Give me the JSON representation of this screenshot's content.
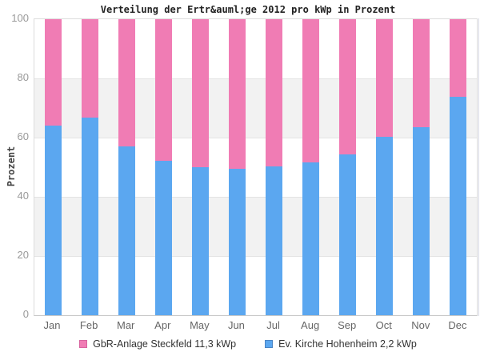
{
  "chart_data": {
    "type": "bar",
    "stacked": true,
    "title": "Verteilung der Ertr&auml;ge 2012 pro kWp in Prozent",
    "ylabel": "Prozent",
    "xlabel": "",
    "ylim": [
      0,
      100
    ],
    "yticks": [
      0,
      20,
      40,
      60,
      80,
      100
    ],
    "grid": "horizontal-bands",
    "band_colors": [
      "#FFFFFF",
      "#F2F2F2"
    ],
    "legend_position": "bottom",
    "categories": [
      "Jan",
      "Feb",
      "Mar",
      "Apr",
      "May",
      "Jun",
      "Jul",
      "Aug",
      "Sep",
      "Oct",
      "Nov",
      "Dec"
    ],
    "series": [
      {
        "name": "GbR-Anlage Steckfeld 11,3 kWp",
        "color": "#F07CB4",
        "border_color": "#D8639F",
        "stack_position": "top",
        "values": [
          36.0,
          33.3,
          43.0,
          47.8,
          50.0,
          50.6,
          49.6,
          48.4,
          45.8,
          39.8,
          36.4,
          26.2
        ]
      },
      {
        "name": "Ev. Kirche Hohenheim 2,2 kWp",
        "color": "#5BA7F0",
        "border_color": "#4A84C4",
        "stack_position": "bottom",
        "values": [
          64.0,
          66.7,
          57.0,
          52.2,
          50.0,
          49.4,
          50.4,
          51.6,
          54.2,
          60.2,
          63.6,
          73.8
        ]
      }
    ]
  }
}
